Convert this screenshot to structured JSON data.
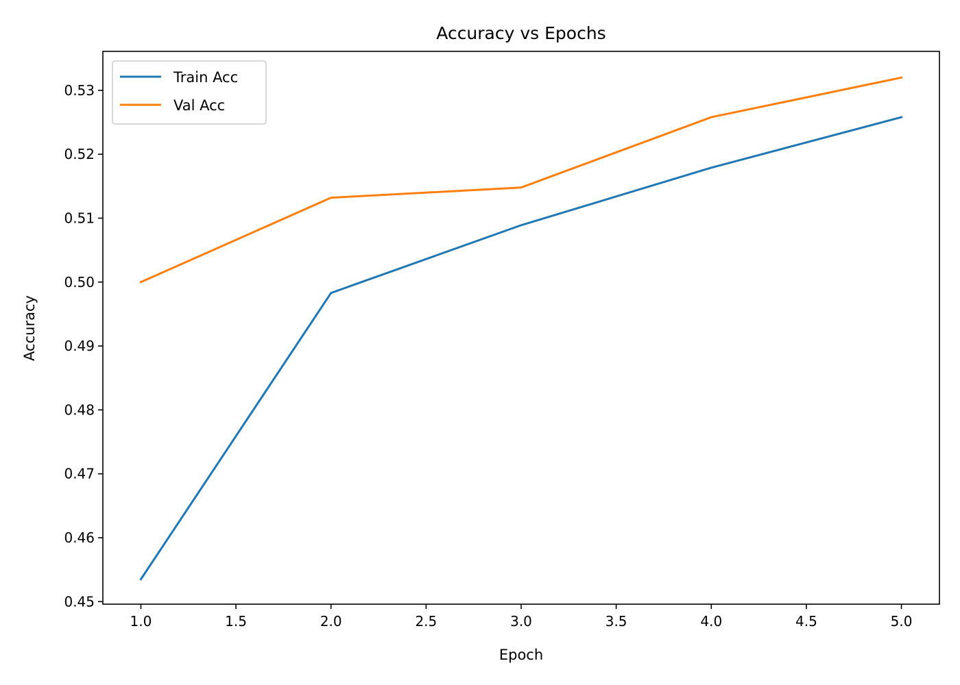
{
  "chart_data": {
    "type": "line",
    "title": "Accuracy vs Epochs",
    "xlabel": "Epoch",
    "ylabel": "Accuracy",
    "x": [
      1,
      2,
      3,
      4,
      5
    ],
    "xlim": [
      0.8,
      5.2
    ],
    "ylim": [
      0.4496,
      0.5361
    ],
    "xticks": [
      1.0,
      1.5,
      2.0,
      2.5,
      3.0,
      3.5,
      4.0,
      4.5,
      5.0
    ],
    "xtick_labels": [
      "1.0",
      "1.5",
      "2.0",
      "2.5",
      "3.0",
      "3.5",
      "4.0",
      "4.5",
      "5.0"
    ],
    "yticks": [
      0.45,
      0.46,
      0.47,
      0.48,
      0.49,
      0.5,
      0.51,
      0.52,
      0.53
    ],
    "ytick_labels": [
      "0.45",
      "0.46",
      "0.47",
      "0.48",
      "0.49",
      "0.50",
      "0.51",
      "0.52",
      "0.53"
    ],
    "grid": false,
    "legend_position": "top-left",
    "series": [
      {
        "name": "Train Acc",
        "color": "#1f77b4",
        "values": [
          0.4535,
          0.4983,
          0.5089,
          0.5179,
          0.5258
        ]
      },
      {
        "name": "Val Acc",
        "color": "#ff7f0e",
        "values": [
          0.5,
          0.5132,
          0.5148,
          0.5258,
          0.532
        ]
      }
    ]
  }
}
